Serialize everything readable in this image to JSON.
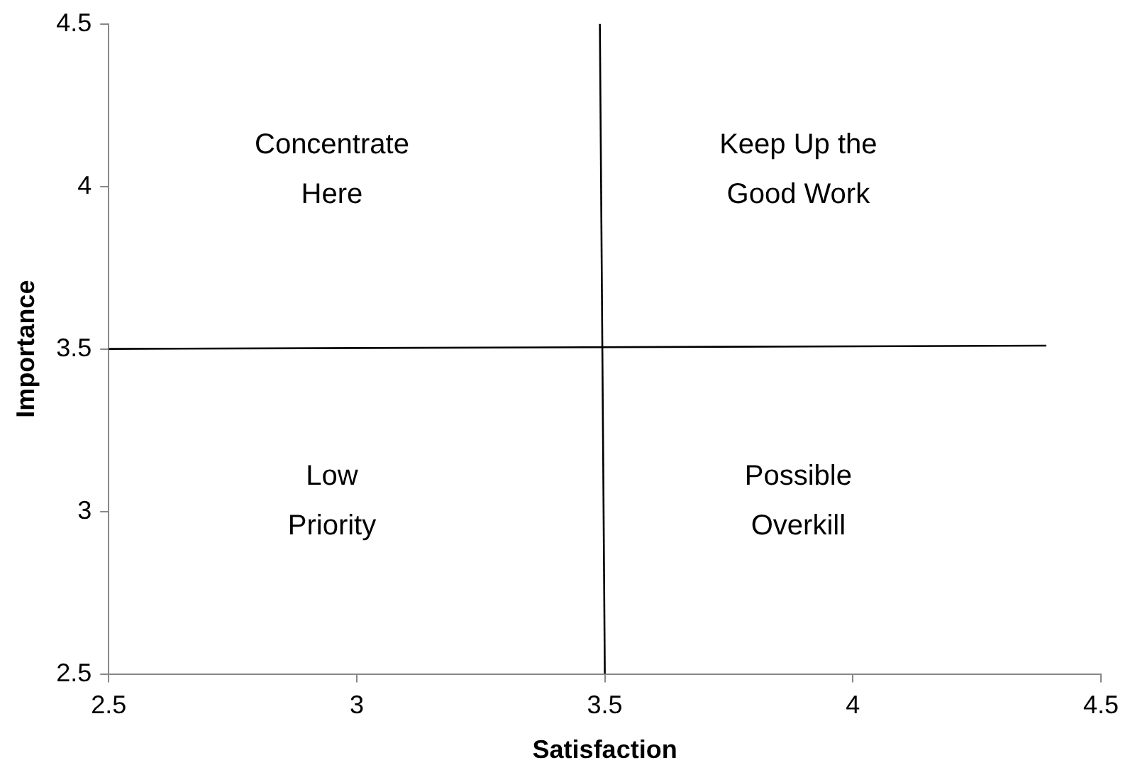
{
  "chart_data": {
    "type": "scatter",
    "xlabel": "Satisfaction",
    "ylabel": "Importance",
    "xlim": [
      2.5,
      4.5
    ],
    "xticks": [
      2.5,
      3,
      3.5,
      4,
      4.5
    ],
    "ylim": [
      2.5,
      4.5
    ],
    "yticks": [
      2.5,
      3,
      3.5,
      4,
      4.5
    ],
    "grid": false,
    "legend": false,
    "marker": "none",
    "line_style": "solid",
    "series": [
      {
        "type": "line",
        "color": "#000000",
        "x": [
          3.49,
          3.5
        ],
        "values": [
          4.5,
          2.5
        ]
      },
      {
        "type": "line",
        "color": "#000000",
        "x": [
          2.5,
          4.39
        ],
        "values": [
          3.5,
          3.51
        ]
      }
    ],
    "annotations": [
      "Concentrate\nHere",
      "Keep Up the\nGood Work",
      "Low\nPriority",
      "Possible\nOverkill"
    ]
  }
}
